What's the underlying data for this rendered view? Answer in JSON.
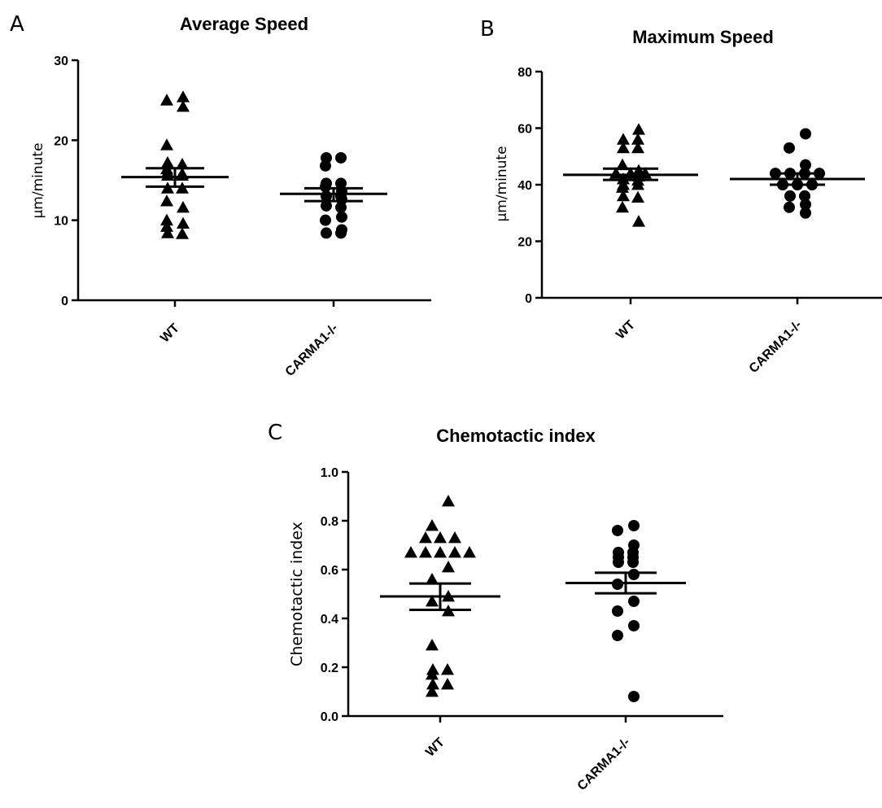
{
  "panels": [
    {
      "letter": "A",
      "title": "Average Speed",
      "ylabel": "µm/minute"
    },
    {
      "letter": "B",
      "title": "Maximum Speed",
      "ylabel": "µm/minute"
    },
    {
      "letter": "C",
      "title": "Chemotactic index",
      "ylabel": "Chemotactic index"
    }
  ],
  "chart_data": [
    {
      "type": "scatter",
      "title": "Average Speed",
      "ylabel": "µm/minute",
      "ylim": [
        0,
        30
      ],
      "yticks": [
        "0",
        "10",
        "20",
        "30"
      ],
      "categories": [
        "WT",
        "CARMA1-/-"
      ],
      "series": [
        {
          "marker": "triangle",
          "values": [
            25.0,
            24.2,
            25.4,
            19.4,
            17.2,
            17.0,
            16.4,
            16.0,
            15.8,
            15.6,
            15.6,
            14.0,
            14.0,
            12.4,
            11.6,
            10.0,
            9.2,
            9.6,
            8.4,
            8.3
          ],
          "mean": 15.4,
          "sem_low": 14.2,
          "sem_high": 16.5
        },
        {
          "marker": "circle",
          "values": [
            17.8,
            17.8,
            16.8,
            14.6,
            14.2,
            14.6,
            13.6,
            13.0,
            13.0,
            12.6,
            11.8,
            11.6,
            10.4,
            10.0,
            8.8,
            8.4,
            8.4
          ],
          "mean": 13.3,
          "sem_low": 12.4,
          "sem_high": 14.0
        }
      ]
    },
    {
      "type": "scatter",
      "title": "Maximum Speed",
      "ylabel": "µm/minute",
      "ylim": [
        0,
        80
      ],
      "yticks": [
        "0",
        "20",
        "40",
        "60",
        "80"
      ],
      "categories": [
        "WT",
        "CARMA1-/-"
      ],
      "series": [
        {
          "marker": "triangle",
          "values": [
            59.5,
            56.0,
            56.0,
            53.0,
            53.0,
            47.0,
            45.0,
            44.0,
            44.0,
            44.0,
            43.0,
            42.0,
            41.5,
            40.0,
            40.0,
            39.0,
            36.0,
            35.5,
            32.0,
            27.0
          ],
          "mean": 43.5,
          "sem_low": 41.7,
          "sem_high": 45.7
        },
        {
          "marker": "circle",
          "values": [
            58.0,
            53.0,
            47.0,
            44.0,
            44.0,
            44.0,
            44.0,
            40.0,
            40.0,
            40.0,
            36.0,
            36.0,
            33.0,
            32.0,
            30.0
          ],
          "mean": 42.0,
          "sem_low": 40.0,
          "sem_high": 44.0
        }
      ]
    },
    {
      "type": "scatter",
      "title": "Chemotactic index",
      "ylabel": "Chemotactic index",
      "ylim": [
        0,
        1.0
      ],
      "yticks": [
        "0.0",
        "0.2",
        "0.4",
        "0.6",
        "0.8",
        "1.0"
      ],
      "categories": [
        "WT",
        "CARMA1-/-"
      ],
      "series": [
        {
          "marker": "triangle",
          "values": [
            0.88,
            0.78,
            0.73,
            0.73,
            0.73,
            0.67,
            0.67,
            0.67,
            0.67,
            0.67,
            0.61,
            0.56,
            0.49,
            0.47,
            0.43,
            0.29,
            0.19,
            0.19,
            0.17,
            0.13,
            0.13,
            0.1
          ],
          "mean": 0.49,
          "sem_low": 0.435,
          "sem_high": 0.543
        },
        {
          "marker": "circle",
          "values": [
            0.78,
            0.76,
            0.7,
            0.67,
            0.67,
            0.65,
            0.65,
            0.63,
            0.63,
            0.58,
            0.54,
            0.47,
            0.43,
            0.37,
            0.33,
            0.08
          ],
          "mean": 0.545,
          "sem_low": 0.503,
          "sem_high": 0.587
        }
      ]
    }
  ]
}
